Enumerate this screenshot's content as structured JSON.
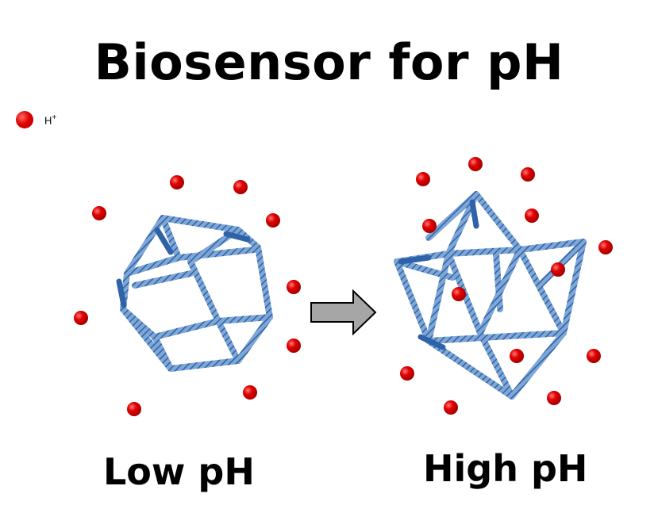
{
  "title": "Biosensor for pH",
  "legend": {
    "symbol": "H",
    "charge": "+"
  },
  "labels": {
    "low": "Low pH",
    "high": "High pH"
  },
  "colors": {
    "ion": "#e00000",
    "cage": "#2f62a8",
    "arrow_fill": "#a6a6a6"
  }
}
